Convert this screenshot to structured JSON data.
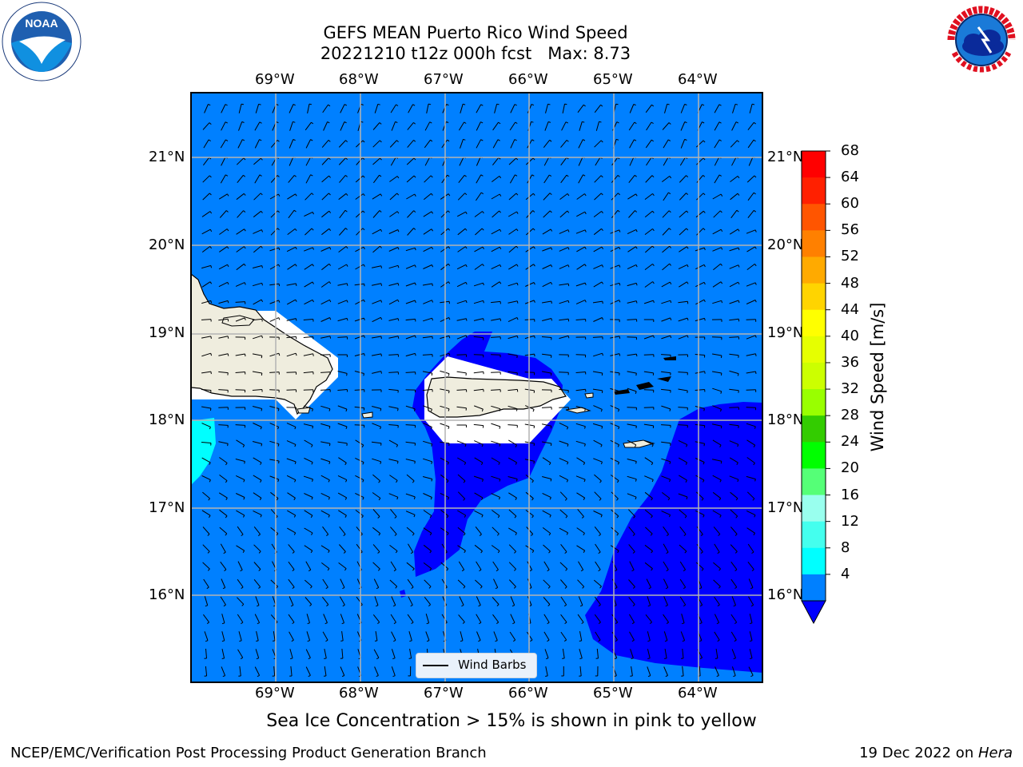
{
  "title": {
    "line1": "GEFS MEAN Puerto Rico Wind Speed",
    "line2": "20221210 t12z 000h fcst   Max: 8.73"
  },
  "map": {
    "lon_ticks": [
      "69°W",
      "68°W",
      "67°W",
      "66°W",
      "65°W",
      "64°W"
    ],
    "lat_ticks": [
      "21°N",
      "20°N",
      "19°N",
      "18°N",
      "17°N",
      "16°N"
    ],
    "grid": true,
    "legend": {
      "label": "Wind Barbs",
      "placement": "bottom-center"
    },
    "fill_colors": {
      "ocean_4_8": "#0080ff",
      "below_4": "#0000ff",
      "8_12": "#00ffff",
      "land": "#efedde"
    }
  },
  "colorbar": {
    "label": "Wind Speed [m/s]",
    "levels": [
      "68",
      "64",
      "60",
      "56",
      "52",
      "48",
      "44",
      "40",
      "36",
      "32",
      "28",
      "24",
      "20",
      "16",
      "12",
      "8",
      "4"
    ],
    "colors": [
      "#ff0000",
      "#ff2000",
      "#ff5500",
      "#ff8000",
      "#ffaa00",
      "#ffd400",
      "#ffff00",
      "#e6ff00",
      "#ccff00",
      "#99ff00",
      "#33cc00",
      "#00ff00",
      "#55ff77",
      "#99ffee",
      "#44ffee",
      "#00ffff",
      "#0080ff"
    ],
    "extend_color": "#0000ff"
  },
  "caption": "Sea Ice Concentration > 15% is shown in pink to yellow",
  "footer": {
    "left": "NCEP/EMC/Verification Post Processing Product Generation Branch",
    "right_prefix": "19 Dec 2022 on ",
    "right_host": "Hera"
  },
  "logos": {
    "noaa": "NOAA",
    "nws": "NATIONAL WEATHER SERVICE"
  }
}
